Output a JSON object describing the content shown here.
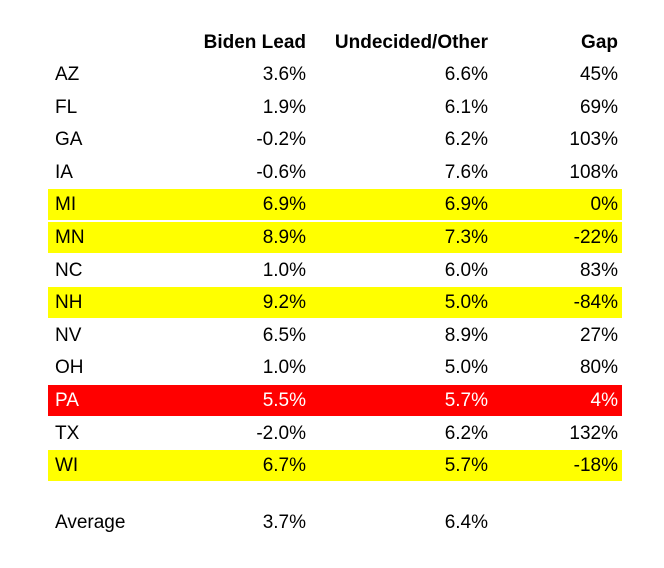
{
  "chart_data": {
    "type": "table",
    "columns": [
      "",
      "Biden Lead",
      "Undecided/Other",
      "Gap"
    ],
    "rows": [
      {
        "state": "AZ",
        "biden_lead": "3.6%",
        "undecided_other": "6.6%",
        "gap": "45%",
        "highlight": "none"
      },
      {
        "state": "FL",
        "biden_lead": "1.9%",
        "undecided_other": "6.1%",
        "gap": "69%",
        "highlight": "none"
      },
      {
        "state": "GA",
        "biden_lead": "-0.2%",
        "undecided_other": "6.2%",
        "gap": "103%",
        "highlight": "none"
      },
      {
        "state": "IA",
        "biden_lead": "-0.6%",
        "undecided_other": "7.6%",
        "gap": "108%",
        "highlight": "none"
      },
      {
        "state": "MI",
        "biden_lead": "6.9%",
        "undecided_other": "6.9%",
        "gap": "0%",
        "highlight": "yellow"
      },
      {
        "state": "MN",
        "biden_lead": "8.9%",
        "undecided_other": "7.3%",
        "gap": "-22%",
        "highlight": "yellow"
      },
      {
        "state": "NC",
        "biden_lead": "1.0%",
        "undecided_other": "6.0%",
        "gap": "83%",
        "highlight": "none"
      },
      {
        "state": "NH",
        "biden_lead": "9.2%",
        "undecided_other": "5.0%",
        "gap": "-84%",
        "highlight": "yellow"
      },
      {
        "state": "NV",
        "biden_lead": "6.5%",
        "undecided_other": "8.9%",
        "gap": "27%",
        "highlight": "none"
      },
      {
        "state": "OH",
        "biden_lead": "1.0%",
        "undecided_other": "5.0%",
        "gap": "80%",
        "highlight": "none"
      },
      {
        "state": "PA",
        "biden_lead": "5.5%",
        "undecided_other": "5.7%",
        "gap": "4%",
        "highlight": "red"
      },
      {
        "state": "TX",
        "biden_lead": "-2.0%",
        "undecided_other": "6.2%",
        "gap": "132%",
        "highlight": "none"
      },
      {
        "state": "WI",
        "biden_lead": "6.7%",
        "undecided_other": "5.7%",
        "gap": "-18%",
        "highlight": "yellow"
      }
    ],
    "summary": {
      "label": "Average",
      "biden_lead": "3.7%",
      "undecided_other": "6.4%",
      "gap": ""
    },
    "highlight_colors": {
      "yellow": "#ffff00",
      "red": "#ff0000",
      "red_text": "#ffffff"
    }
  }
}
